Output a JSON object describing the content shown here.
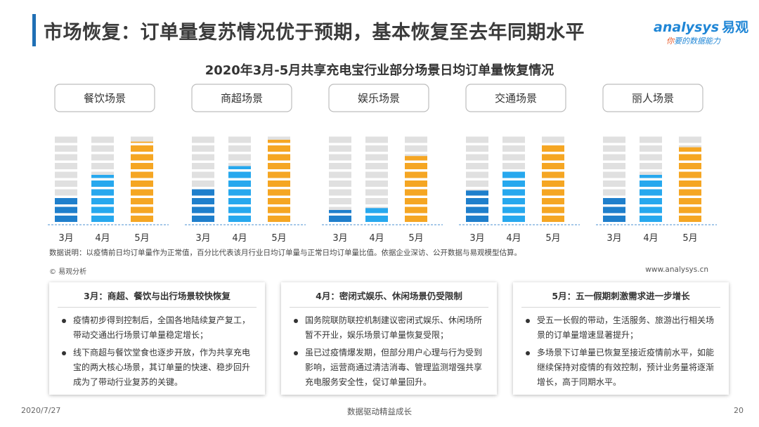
{
  "page_title": "市场恢复：订单量复苏情况优于预期，基本恢复至去年同期水平",
  "logo": {
    "brand": "analysys",
    "brand_cn": "易观",
    "slogan_pre": "你",
    "slogan": "要的数据能力"
  },
  "chart_data": {
    "type": "bar",
    "title": "2020年3月-5月共享充电宝行业部分场景日均订单量恢复情况",
    "unit_note": "each column = 10 segments, 100% of normal level",
    "categories": [
      "3月",
      "4月",
      "5月"
    ],
    "panels": [
      {
        "name": "餐饮场景",
        "values": [
          30,
          55,
          92
        ]
      },
      {
        "name": "商超场景",
        "values": [
          40,
          65,
          95
        ]
      },
      {
        "name": "娱乐场景",
        "values": [
          15,
          18,
          77
        ]
      },
      {
        "name": "交通场景",
        "values": [
          38,
          60,
          90
        ]
      },
      {
        "name": "丽人场景",
        "values": [
          30,
          55,
          87
        ]
      }
    ],
    "colors": {
      "base": "#e0e0e0",
      "m3": "#1f7fcc",
      "m4": "#27a8ee",
      "m5": "#f5a623",
      "baseline": "#6fa8dc"
    }
  },
  "note": "数据说明：以疫情前日均订单量作为正常值，百分比代表该月行业日均订单量与正常日均订单量比值。依据企业深访、公开数据与易观模型估算。",
  "source": "© 易观分析",
  "website": "www.analysys.cn",
  "panels": [
    {
      "title": "3月：商超、餐饮与出行场景较快恢复",
      "bullets": [
        "疫情初步得到控制后，全国各地陆续复产复工，带动交通出行场景订单量稳定增长；",
        "线下商超与餐饮堂食也逐步开放，作为共享充电宝的两大核心场景，其订单量的快速、稳步回升成为了带动行业复苏的关键。"
      ]
    },
    {
      "title": "4月：密闭式娱乐、休闲场景仍受限制",
      "bullets": [
        "国务院联防联控机制建议密闭式娱乐、休闲场所暂不开业，娱乐场景订单量恢复受限；",
        "虽已过疫情爆发期，但部分用户心理与行为受到影响，运营商通过清洁消毒、管理监测增强共享充电服务安全性，促订单量回升。"
      ]
    },
    {
      "title": "5月：五一假期刺激需求进一步增长",
      "bullets": [
        "受五一长假的带动，生活服务、旅游出行相关场景的订单量增速显著提升；",
        "多场景下订单量已恢复至接近疫情前水平，如能继续保持对疫情的有效控制，预计业务量将逐渐增长，高于同期水平。"
      ]
    }
  ],
  "footer": {
    "date": "2020/7/27",
    "slogan": "数据驱动精益成长",
    "page": "20"
  }
}
